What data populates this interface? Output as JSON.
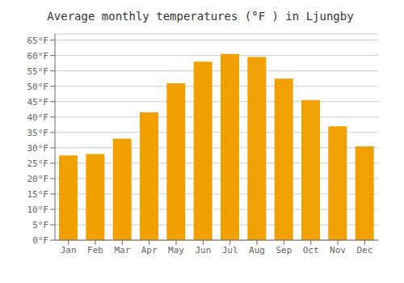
{
  "chart_data": {
    "type": "bar",
    "title": "Average monthly temperatures (°F ) in Ljungby",
    "categories": [
      "Jan",
      "Feb",
      "Mar",
      "Apr",
      "May",
      "Jun",
      "Jul",
      "Aug",
      "Sep",
      "Oct",
      "Nov",
      "Dec"
    ],
    "values": [
      27.5,
      28.0,
      33.0,
      41.5,
      51.0,
      58.0,
      60.5,
      59.5,
      52.5,
      45.5,
      37.0,
      30.5
    ],
    "color": "#F0A000",
    "ylim": [
      0,
      67
    ],
    "yticks": [
      {
        "value": 0,
        "label": "0°F"
      },
      {
        "value": 5,
        "label": "5°F"
      },
      {
        "value": 10,
        "label": "10°F"
      },
      {
        "value": 15,
        "label": "15°F"
      },
      {
        "value": 20,
        "label": "20°F"
      },
      {
        "value": 25,
        "label": "25°F"
      },
      {
        "value": 30,
        "label": "30°F"
      },
      {
        "value": 35,
        "label": "35°F"
      },
      {
        "value": 40,
        "label": "40°F"
      },
      {
        "value": 45,
        "label": "45°F"
      },
      {
        "value": 50,
        "label": "50°F"
      },
      {
        "value": 55,
        "label": "55°F"
      },
      {
        "value": 60,
        "label": "60°F"
      },
      {
        "value": 65,
        "label": "65°F"
      }
    ],
    "grid": true
  }
}
